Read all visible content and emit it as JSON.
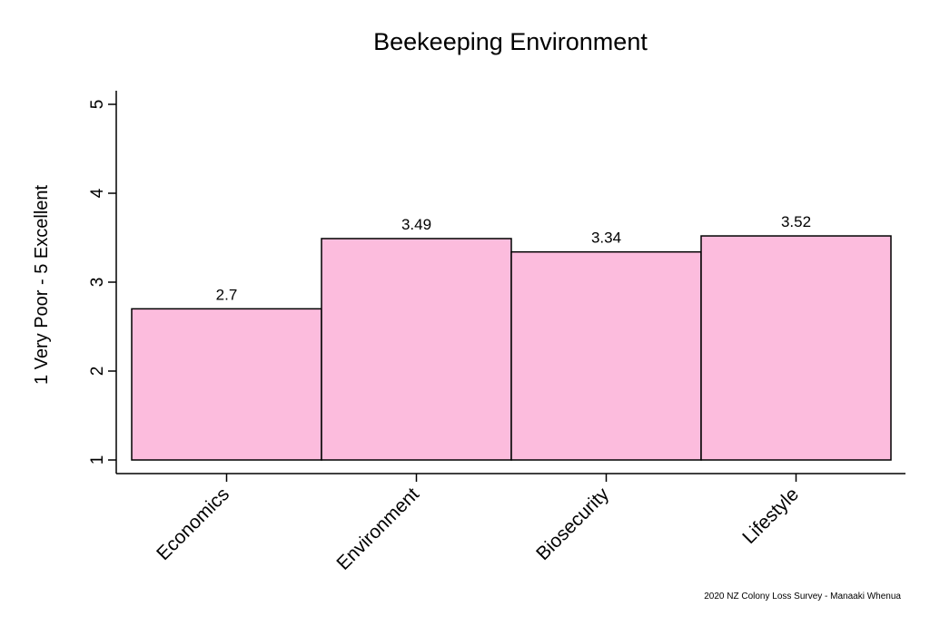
{
  "chart_data": {
    "type": "bar",
    "title": "Beekeeping Environment",
    "ylabel": "1 Very Poor - 5 Excellent",
    "xlabel": "",
    "categories": [
      "Economics",
      "Environment",
      "Biosecurity",
      "Lifestyle"
    ],
    "values": [
      2.7,
      3.49,
      3.34,
      3.52
    ],
    "value_labels": [
      "2.7",
      "3.49",
      "3.34",
      "3.52"
    ],
    "ylim": [
      1,
      5
    ],
    "yticks": [
      1,
      2,
      3,
      4,
      5
    ],
    "bar_color": "#fcbcdd",
    "bar_edge_color": "#000000",
    "grid": false,
    "caption": "2020 NZ Colony Loss Survey - Manaaki Whenua"
  }
}
